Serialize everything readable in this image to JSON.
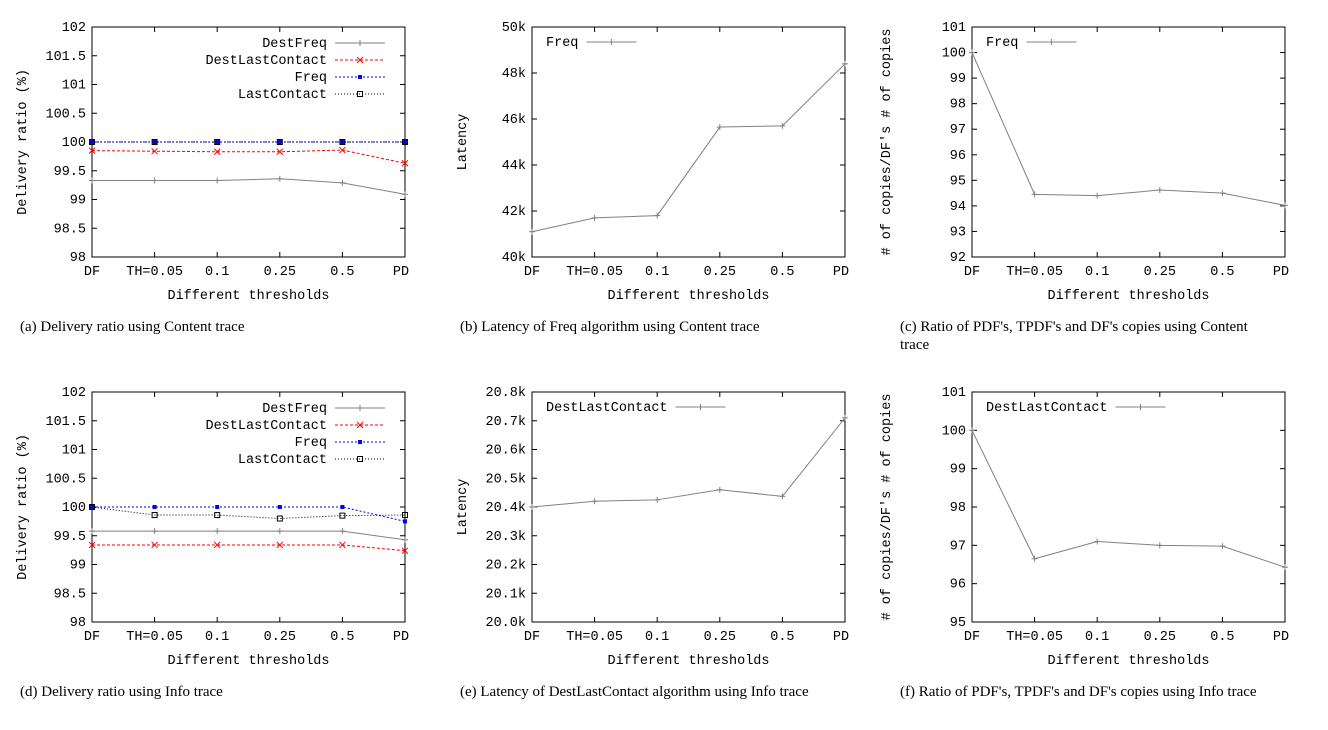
{
  "chart_data": [
    {
      "type": "line",
      "panel": "a",
      "caption": "(a) Delivery ratio using Content trace",
      "xlabel": "Different thresholds",
      "ylabel": "Delivery ratio (%)",
      "categories": [
        "DF",
        "TH=0.05",
        "0.1",
        "0.25",
        "0.5",
        "PDF"
      ],
      "ylim": [
        98,
        102
      ],
      "yticks": [
        "98",
        "98.5",
        "99",
        "99.5",
        "100",
        "100.5",
        "101",
        "101.5",
        "102"
      ],
      "legend": "top-right",
      "series": [
        {
          "name": "DestFreq",
          "values": [
            99.33,
            99.33,
            99.33,
            99.36,
            99.29,
            99.09
          ],
          "color": "#808080",
          "marker": "plus",
          "dash": ""
        },
        {
          "name": "DestLastContact",
          "values": [
            99.85,
            99.84,
            99.83,
            99.83,
            99.86,
            99.63
          ],
          "color": "#ff0000",
          "marker": "x",
          "dash": "3,2"
        },
        {
          "name": "Freq",
          "values": [
            100,
            100,
            100,
            100,
            100,
            100
          ],
          "color": "#0000ff",
          "marker": "star",
          "dash": "2,2"
        },
        {
          "name": "LastContact",
          "values": [
            100,
            100,
            100,
            100,
            100,
            100
          ],
          "color": "#000000",
          "marker": "square",
          "dash": "1,2"
        }
      ]
    },
    {
      "type": "line",
      "panel": "b",
      "caption": "(b) Latency of Freq algorithm using Content trace",
      "xlabel": "Different thresholds",
      "ylabel": "Latency",
      "categories": [
        "DF",
        "TH=0.05",
        "0.1",
        "0.25",
        "0.5",
        "PDF"
      ],
      "ylim": [
        40000,
        50000
      ],
      "yticks": [
        "40k",
        "42k",
        "44k",
        "46k",
        "48k",
        "50k"
      ],
      "legend": "top-left",
      "series": [
        {
          "name": "Freq",
          "values": [
            41100,
            41700,
            41800,
            45650,
            45700,
            48400
          ],
          "color": "#808080",
          "marker": "plus",
          "dash": ""
        }
      ]
    },
    {
      "type": "line",
      "panel": "c",
      "caption": "(c) Ratio of PDF's, TPDF's and DF's copies using Content trace",
      "xlabel": "Different thresholds",
      "ylabel": "# of copies/DF's # of copies",
      "categories": [
        "DF",
        "TH=0.05",
        "0.1",
        "0.25",
        "0.5",
        "PDF"
      ],
      "ylim": [
        92,
        101
      ],
      "yticks": [
        "92",
        "93",
        "94",
        "95",
        "96",
        "97",
        "98",
        "99",
        "100",
        "101"
      ],
      "legend": "top-left",
      "series": [
        {
          "name": "Freq",
          "values": [
            100,
            94.45,
            94.4,
            94.62,
            94.5,
            94.02
          ],
          "color": "#808080",
          "marker": "plus",
          "dash": ""
        }
      ]
    },
    {
      "type": "line",
      "panel": "d",
      "caption": "(d) Delivery ratio using Info trace",
      "xlabel": "Different thresholds",
      "ylabel": "Delivery ratio (%)",
      "categories": [
        "DF",
        "TH=0.05",
        "0.1",
        "0.25",
        "0.5",
        "PDF"
      ],
      "ylim": [
        98,
        102
      ],
      "yticks": [
        "98",
        "98.5",
        "99",
        "99.5",
        "100",
        "100.5",
        "101",
        "101.5",
        "102"
      ],
      "legend": "top-right",
      "series": [
        {
          "name": "DestFreq",
          "values": [
            99.58,
            99.58,
            99.58,
            99.58,
            99.58,
            99.43
          ],
          "color": "#808080",
          "marker": "plus",
          "dash": ""
        },
        {
          "name": "DestLastContact",
          "values": [
            99.34,
            99.34,
            99.34,
            99.34,
            99.34,
            99.24
          ],
          "color": "#ff0000",
          "marker": "x",
          "dash": "3,2"
        },
        {
          "name": "Freq",
          "values": [
            100,
            100,
            100,
            100,
            100,
            99.75
          ],
          "color": "#0000ff",
          "marker": "star",
          "dash": "2,2"
        },
        {
          "name": "LastContact",
          "values": [
            100,
            99.86,
            99.86,
            99.8,
            99.85,
            99.86
          ],
          "color": "#000000",
          "marker": "square",
          "dash": "1,2"
        }
      ]
    },
    {
      "type": "line",
      "panel": "e",
      "caption": "(e) Latency of DestLastContact algorithm using Info trace",
      "xlabel": "Different thresholds",
      "ylabel": "Latency",
      "categories": [
        "DF",
        "TH=0.05",
        "0.1",
        "0.25",
        "0.5",
        "PDF"
      ],
      "ylim": [
        20000,
        20800
      ],
      "yticks": [
        "20.0k",
        "20.1k",
        "20.2k",
        "20.3k",
        "20.4k",
        "20.5k",
        "20.6k",
        "20.7k",
        "20.8k"
      ],
      "legend": "top-left",
      "series": [
        {
          "name": "DestLastContact",
          "values": [
            20400,
            20420,
            20425,
            20460,
            20437,
            20710
          ],
          "color": "#808080",
          "marker": "plus",
          "dash": ""
        }
      ]
    },
    {
      "type": "line",
      "panel": "f",
      "caption": "(f) Ratio of PDF's, TPDF's and DF's copies using Info trace",
      "xlabel": "Different thresholds",
      "ylabel": "# of copies/DF's # of copies",
      "categories": [
        "DF",
        "TH=0.05",
        "0.1",
        "0.25",
        "0.5",
        "PDF"
      ],
      "ylim": [
        95,
        101
      ],
      "yticks": [
        "95",
        "96",
        "97",
        "98",
        "99",
        "100",
        "101"
      ],
      "legend": "top-left",
      "series": [
        {
          "name": "DestLastContact",
          "values": [
            100,
            96.65,
            97.1,
            97.0,
            96.98,
            96.43
          ],
          "color": "#808080",
          "marker": "plus",
          "dash": ""
        }
      ]
    }
  ]
}
